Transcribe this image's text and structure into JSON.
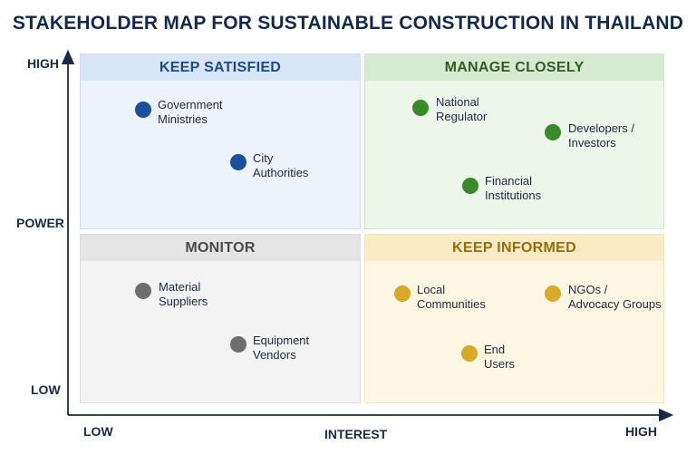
{
  "title": "STAKEHOLDER MAP FOR SUSTAINABLE CONSTRUCTION IN THAILAND",
  "axes": {
    "y_label": "POWER",
    "y_high": "HIGH",
    "y_low": "LOW",
    "x_label": "INTEREST",
    "x_low": "LOW",
    "x_high": "HIGH"
  },
  "quadrants": {
    "top_left": {
      "label": "KEEP SATISFIED",
      "color": "#1d4f9c"
    },
    "top_right": {
      "label": "MANAGE CLOSELY",
      "color": "#3a8a2b"
    },
    "bottom_left": {
      "label": "MONITOR",
      "color": "#6e6e6e"
    },
    "bottom_right": {
      "label": "KEEP INFORMED",
      "color": "#d9a92a"
    }
  },
  "stakeholders": {
    "government_ministries": {
      "line1": "Government",
      "line2": "Ministries"
    },
    "city_authorities": {
      "line1": "City",
      "line2": "Authorities"
    },
    "national_regulator": {
      "line1": "National",
      "line2": "Regulator"
    },
    "developers_investors": {
      "line1": "Developers /",
      "line2": "Investors"
    },
    "financial_institutions": {
      "line1": "Financial",
      "line2": "Institutions"
    },
    "material_suppliers": {
      "line1": "Material",
      "line2": "Suppliers"
    },
    "equipment_vendors": {
      "line1": "Equipment",
      "line2": "Vendors"
    },
    "local_communities": {
      "line1": "Local",
      "line2": "Communities"
    },
    "ngos_advocacy": {
      "line1": "NGOs /",
      "line2": "Advocacy Groups"
    },
    "end_users": {
      "line1": "End",
      "line2": "Users"
    }
  }
}
